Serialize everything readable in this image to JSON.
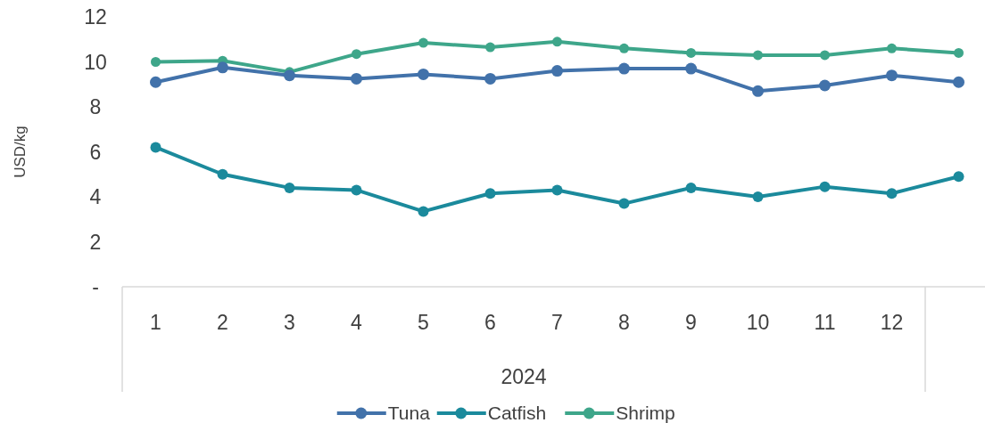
{
  "chart_data": {
    "type": "line",
    "ylabel": "USD/kg",
    "xlabel": "2024",
    "categories": [
      "1",
      "2",
      "3",
      "4",
      "5",
      "6",
      "7",
      "8",
      "9",
      "10",
      "11",
      "12",
      null
    ],
    "ylim": [
      0,
      12
    ],
    "yticks": [
      {
        "value": 0,
        "label": "-"
      },
      2,
      4,
      6,
      8,
      10,
      12
    ],
    "grid": false,
    "legend": "bottom",
    "marker": "circle",
    "series": [
      {
        "name": "Tuna",
        "color": "#4272aa",
        "values": [
          9.1,
          9.75,
          9.4,
          9.25,
          9.45,
          9.25,
          9.6,
          9.7,
          9.7,
          8.7,
          8.95,
          9.4,
          9.1
        ]
      },
      {
        "name": "Catfish",
        "color": "#1b8a9c",
        "values": [
          6.2,
          5.0,
          4.4,
          4.3,
          3.35,
          4.15,
          4.3,
          3.7,
          4.4,
          4.0,
          4.45,
          4.15,
          4.9
        ]
      },
      {
        "name": "Shrimp",
        "color": "#3ea68a",
        "values": [
          10.0,
          10.05,
          9.55,
          10.35,
          10.85,
          10.65,
          10.9,
          10.6,
          10.4,
          10.3,
          10.3,
          10.6,
          10.4
        ]
      }
    ]
  }
}
